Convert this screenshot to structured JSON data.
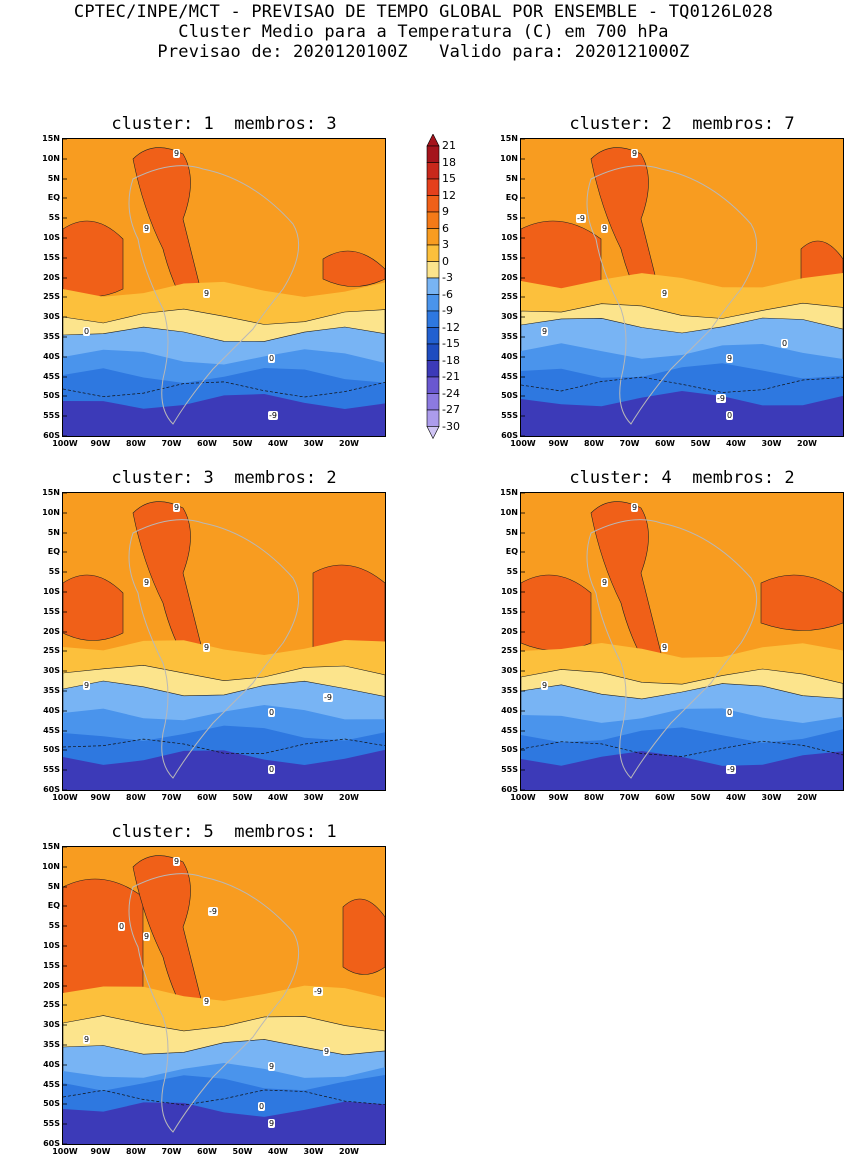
{
  "header": {
    "line1": "CPTEC/INPE/MCT - PREVISAO DE TEMPO GLOBAL POR ENSEMBLE - TQ0126L028",
    "line2": "Cluster Medio para a Temperatura (C) em 700 hPa",
    "line3": "Previsao de: 2020120100Z   Valido para: 2020121000Z"
  },
  "panels": [
    {
      "title": "cluster: 1  membros: 3",
      "labels": [
        "9",
        "9",
        "9",
        "0",
        "0",
        "-9"
      ]
    },
    {
      "title": "cluster: 2  membros: 7",
      "labels": [
        "9",
        "9",
        "9",
        "9",
        "9",
        "0",
        "0",
        "-9",
        "-9"
      ]
    },
    {
      "title": "cluster: 3  membros: 2",
      "labels": [
        "9",
        "9",
        "9",
        "9",
        "0",
        "0",
        "-9"
      ]
    },
    {
      "title": "cluster: 4  membros: 2",
      "labels": [
        "9",
        "9",
        "9",
        "9",
        "0",
        "-9"
      ]
    },
    {
      "title": "cluster: 5  membros: 1",
      "labels": [
        "9",
        "9",
        "9",
        "9",
        "9",
        "9",
        "9",
        "0",
        "0",
        "-9",
        "-9"
      ]
    }
  ],
  "lat_ticks": [
    "15N",
    "10N",
    "5N",
    "EQ",
    "5S",
    "10S",
    "15S",
    "20S",
    "25S",
    "30S",
    "35S",
    "40S",
    "45S",
    "50S",
    "55S",
    "60S"
  ],
  "lon_ticks": [
    "100W",
    "90W",
    "80W",
    "70W",
    "60W",
    "50W",
    "40W",
    "30W",
    "20W"
  ],
  "colorbar": {
    "labels": [
      "21",
      "18",
      "15",
      "12",
      "9",
      "6",
      "3",
      "0",
      "-3",
      "-6",
      "-9",
      "-12",
      "-15",
      "-18",
      "-21",
      "-24",
      "-27",
      "-30"
    ],
    "colors": [
      "#a5141c",
      "#c8281c",
      "#e4401c",
      "#f06018",
      "#f47a18",
      "#f89c20",
      "#fcc03c",
      "#fce48c",
      "#78b4f4",
      "#4a94ec",
      "#2e78e0",
      "#2260d0",
      "#1e4cc0",
      "#3c3ab8",
      "#6a58d0",
      "#8c7ae0",
      "#ac9cec",
      "#cfc4f4"
    ]
  }
}
